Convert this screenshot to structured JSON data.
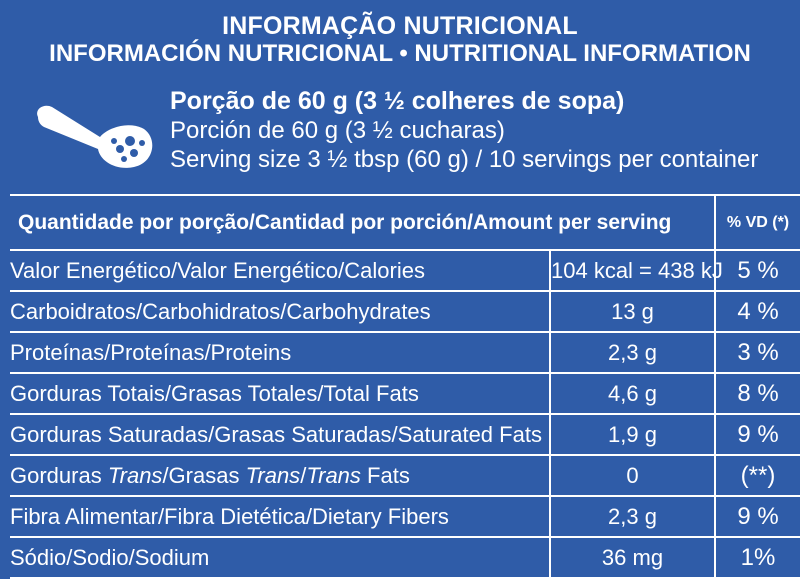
{
  "header": {
    "title_pt": "INFORMAÇÃO NUTRICIONAL",
    "title_es_en": "INFORMACIÓN NUTRICIONAL • NUTRITIONAL INFORMATION"
  },
  "serving": {
    "pt": "Porção de 60 g (3 ½ colheres de sopa)",
    "es": "Porción de 60 g (3 ½ cucharas)",
    "en": "Serving size  3 ½  tbsp  (60 g) / 10 servings per container",
    "icon": "spoon-icon"
  },
  "table": {
    "header_label": "Quantidade por porção/Cantidad por porción/Amount per serving",
    "header_pct": "% VD (*)",
    "rows": [
      {
        "label": "Valor Energético/Valor Energético/Calories",
        "amount": "104 kcal = 438 kJ",
        "pct": "5 %"
      },
      {
        "label": "Carboidratos/Carbohidratos/Carbohydrates",
        "amount": "13 g",
        "pct": "4 %"
      },
      {
        "label": "Proteínas/Proteínas/Proteins",
        "amount": "2,3 g",
        "pct": "3 %"
      },
      {
        "label": "Gorduras Totais/Grasas Totales/Total Fats",
        "amount": "4,6 g",
        "pct": "8 %"
      },
      {
        "label": "Gorduras Saturadas/Grasas Saturadas/Saturated Fats",
        "amount": "1,9 g",
        "pct": "9 %"
      },
      {
        "label_parts": [
          "Gorduras ",
          "Trans",
          "/Grasas ",
          "Trans",
          "/",
          "Trans",
          " Fats"
        ],
        "amount": "0",
        "pct": "(**)"
      },
      {
        "label": "Fibra Alimentar/Fibra Dietética/Dietary Fibers",
        "amount": "2,3 g",
        "pct": "9 %"
      },
      {
        "label": "Sódio/Sodio/Sodium",
        "amount": "36 mg",
        "pct": "1%"
      }
    ]
  },
  "colors": {
    "background": "#2f5ca8",
    "text": "#ffffff"
  }
}
